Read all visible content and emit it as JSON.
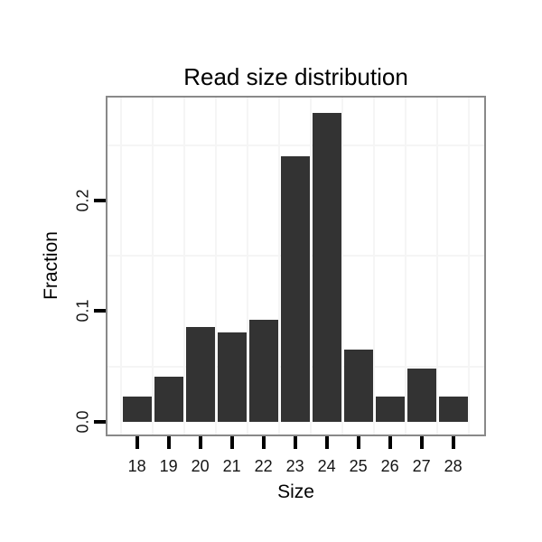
{
  "chart_data": {
    "type": "bar",
    "title": "Read size distribution",
    "xlabel": "Size",
    "ylabel": "Fraction",
    "categories": [
      "18",
      "19",
      "20",
      "21",
      "22",
      "23",
      "24",
      "25",
      "26",
      "27",
      "28"
    ],
    "values": [
      0.023,
      0.041,
      0.086,
      0.081,
      0.092,
      0.24,
      0.279,
      0.065,
      0.023,
      0.048,
      0.023
    ],
    "y_tick_values": [
      0.0,
      0.1,
      0.2
    ],
    "y_tick_labels": [
      "0.0",
      "0.1",
      "0.2"
    ],
    "y_minor_gridlines": [
      0.05,
      0.15,
      0.25
    ],
    "ylim": [
      -0.014,
      0.295
    ],
    "grid": "minor gridlines only, horizontal and vertical",
    "legend_position": "none",
    "bar_color": "#333333",
    "grid_color": "#f5f5f5",
    "panel_border_color": "#898989",
    "tick_color": "#000000",
    "background_color": "#ffffff"
  }
}
